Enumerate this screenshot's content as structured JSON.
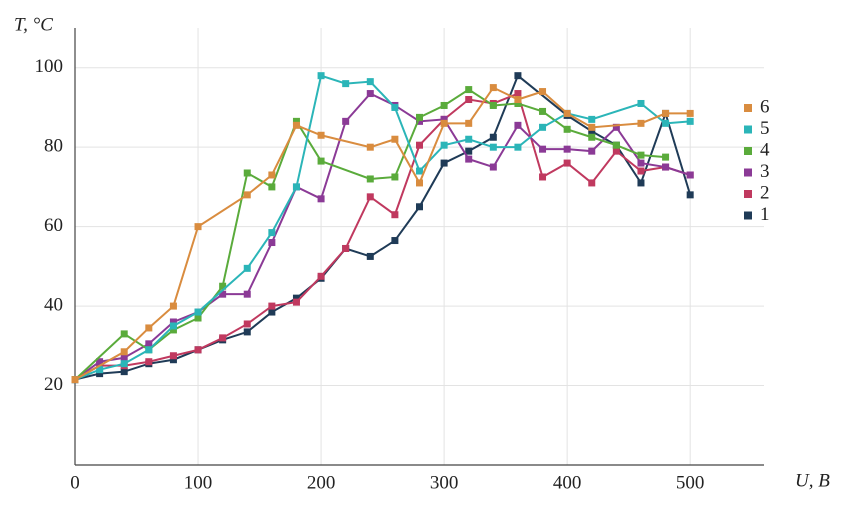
{
  "chart_data": {
    "type": "line",
    "xlabel": "U, В",
    "ylabel": "T, °C",
    "xlim": [
      0,
      560
    ],
    "ylim": [
      0,
      110
    ],
    "xticks": [
      0,
      100,
      200,
      300,
      400,
      500
    ],
    "yticks": [
      20,
      40,
      60,
      80,
      100
    ],
    "grid": true,
    "legend": "right",
    "series": [
      {
        "name": "1",
        "color": "#1f3b57",
        "x": [
          0,
          20,
          40,
          60,
          80,
          100,
          120,
          140,
          160,
          180,
          200,
          220,
          240,
          260,
          280,
          300,
          320,
          340,
          360,
          400,
          420,
          440,
          460,
          480,
          500
        ],
        "values": [
          21.5,
          23,
          23.5,
          25.5,
          26.5,
          29,
          31.5,
          33.5,
          38.5,
          42,
          47,
          54.5,
          52.5,
          56.5,
          65,
          76,
          79,
          82.5,
          98,
          88,
          84,
          80.5,
          71,
          88.5,
          68
        ]
      },
      {
        "name": "2",
        "color": "#c0395f",
        "x": [
          0,
          20,
          40,
          60,
          80,
          100,
          120,
          140,
          160,
          180,
          200,
          220,
          240,
          260,
          280,
          300,
          320,
          340,
          360,
          380,
          400,
          420,
          440,
          460,
          480,
          500
        ],
        "values": [
          21.5,
          25,
          25,
          26,
          27.5,
          29,
          32,
          35.5,
          40,
          41,
          47.5,
          54.5,
          67.5,
          63,
          80.5,
          87,
          92,
          91,
          93.5,
          72.5,
          76,
          71,
          79,
          74,
          75,
          73
        ]
      },
      {
        "name": "3",
        "color": "#8b3a96",
        "x": [
          0,
          20,
          40,
          60,
          80,
          100,
          120,
          140,
          160,
          180,
          200,
          220,
          240,
          260,
          280,
          300,
          320,
          340,
          360,
          380,
          400,
          420,
          440,
          460,
          480,
          500
        ],
        "values": [
          21.5,
          26,
          27,
          30.5,
          36,
          38.5,
          43,
          43,
          56,
          70,
          67,
          86.5,
          93.5,
          90.5,
          86.5,
          87,
          77,
          75,
          85.5,
          79.5,
          79.5,
          79,
          85,
          76,
          75,
          73
        ]
      },
      {
        "name": "4",
        "color": "#5aab3b",
        "x": [
          0,
          40,
          60,
          80,
          100,
          120,
          140,
          160,
          180,
          200,
          240,
          260,
          280,
          300,
          320,
          340,
          360,
          380,
          400,
          420,
          440,
          460,
          480
        ],
        "values": [
          21.5,
          33,
          29,
          34,
          37,
          45,
          73.5,
          70,
          86.5,
          76.5,
          72,
          72.5,
          87.5,
          90.5,
          94.5,
          90.5,
          91,
          89,
          84.5,
          82.5,
          80.5,
          78,
          77.5
        ]
      },
      {
        "name": "5",
        "color": "#2bb5b8",
        "x": [
          0,
          20,
          40,
          60,
          80,
          100,
          140,
          160,
          180,
          200,
          220,
          240,
          260,
          280,
          300,
          320,
          340,
          360,
          380,
          400,
          420,
          460,
          480,
          500
        ],
        "values": [
          21.5,
          24,
          25.5,
          29,
          35,
          38.5,
          49.5,
          58.5,
          70,
          98,
          96,
          96.5,
          90,
          74,
          80.5,
          82,
          80,
          80,
          85,
          88.5,
          87,
          91,
          86,
          86.5
        ]
      },
      {
        "name": "6",
        "color": "#d98c3f",
        "x": [
          0,
          40,
          60,
          80,
          100,
          140,
          160,
          180,
          200,
          240,
          260,
          280,
          300,
          320,
          340,
          360,
          380,
          400,
          420,
          460,
          480,
          500
        ],
        "values": [
          21.5,
          28.5,
          34.5,
          40,
          60,
          68,
          73,
          85.5,
          83,
          80,
          82,
          71,
          86,
          86,
          95,
          92,
          94,
          88.5,
          85,
          86,
          88.5,
          88.5
        ]
      }
    ]
  }
}
